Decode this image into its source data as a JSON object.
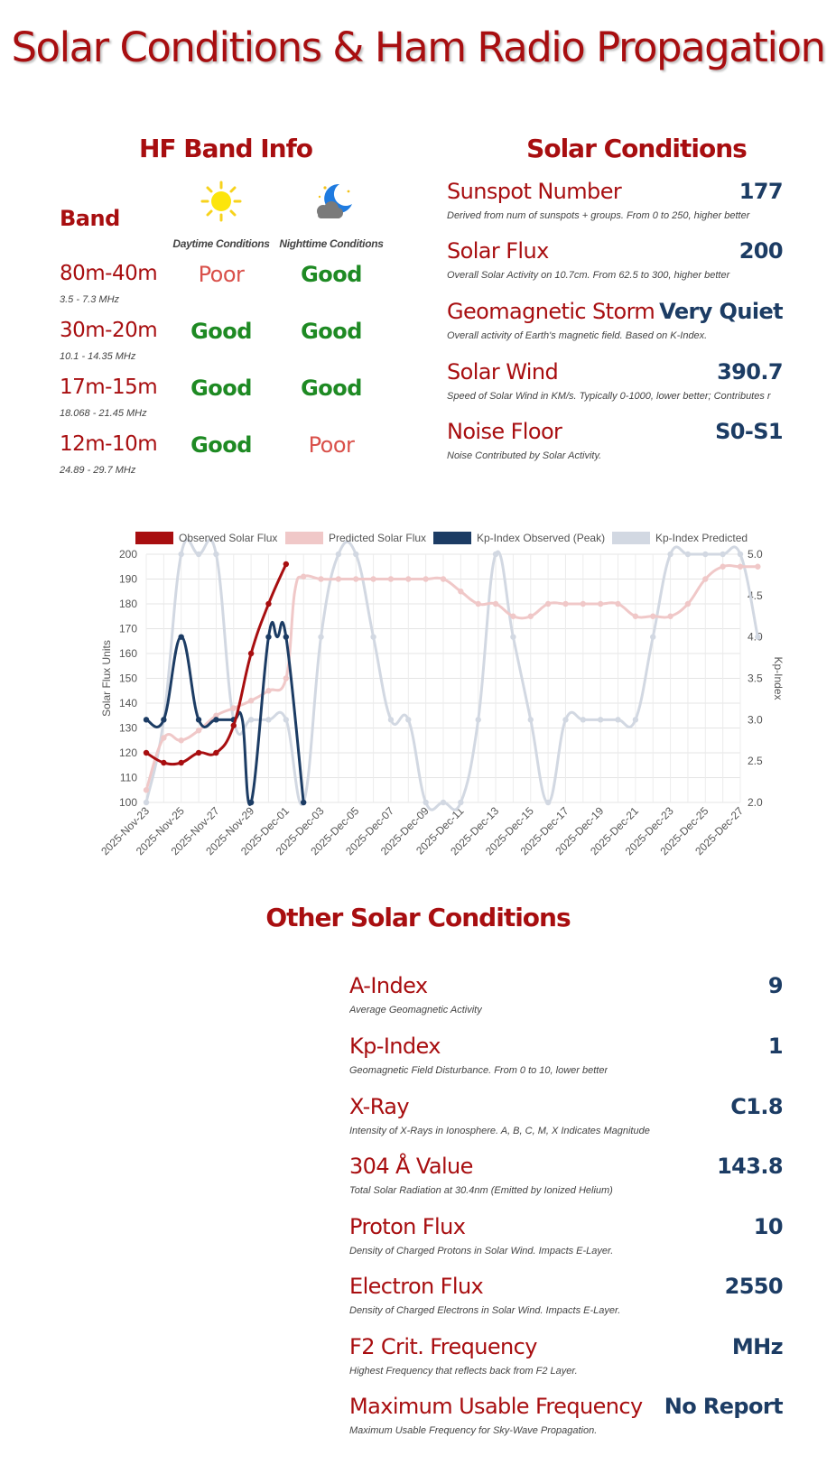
{
  "page_title": "Solar Conditions & Ham Radio Propagation",
  "hf": {
    "title": "HF Band Info",
    "band_header": "Band",
    "day_header": "Daytime Conditions",
    "night_header": "Nighttime Conditions",
    "day_icon": "sun-icon",
    "night_icon": "moon-cloud-icon",
    "rows": [
      {
        "band": "80m-40m",
        "freq": "3.5 - 7.3 MHz",
        "day": "Poor",
        "night": "Good"
      },
      {
        "band": "30m-20m",
        "freq": "10.1 - 14.35 MHz",
        "day": "Good",
        "night": "Good"
      },
      {
        "band": "17m-15m",
        "freq": "18.068 - 21.45 MHz",
        "day": "Good",
        "night": "Good"
      },
      {
        "band": "12m-10m",
        "freq": "24.89 - 29.7 MHz",
        "day": "Good",
        "night": "Poor"
      }
    ]
  },
  "solar": {
    "title": "Solar Conditions",
    "items": [
      {
        "label": "Sunspot Number",
        "value": "177",
        "desc": "Derived from num of sunspots + groups. From 0 to 250, higher better"
      },
      {
        "label": "Solar Flux",
        "value": "200",
        "desc": "Overall Solar Activity on 10.7cm. From 62.5 to 300, higher better"
      },
      {
        "label": "Geomagnetic Storm",
        "value": "Very Quiet",
        "desc": "Overall activity of Earth's magnetic field. Based on K-Index."
      },
      {
        "label": "Solar Wind",
        "value": "390.7",
        "desc": "Speed of Solar Wind in KM/s. Typically 0-1000, lower better; Contributes r"
      },
      {
        "label": "Noise Floor",
        "value": "S0-S1",
        "desc": "Noise Contributed by Solar Activity."
      }
    ]
  },
  "other": {
    "title": "Other Solar Conditions",
    "items": [
      {
        "label": "A-Index",
        "value": "9",
        "desc": "Average Geomagnetic Activity"
      },
      {
        "label": "Kp-Index",
        "value": "1",
        "desc": "Geomagnetic Field Disturbance. From 0 to 10, lower better"
      },
      {
        "label": "X-Ray",
        "value": "C1.8",
        "desc": "Intensity of X-Rays in Ionosphere. A, B, C, M, X Indicates Magnitude"
      },
      {
        "label": "304 Å Value",
        "value": "143.8",
        "desc": "Total Solar Radiation at 30.4nm (Emitted by Ionized Helium)"
      },
      {
        "label": "Proton Flux",
        "value": "10",
        "desc": "Density of Charged Protons in Solar Wind. Impacts E-Layer."
      },
      {
        "label": "Electron Flux",
        "value": "2550",
        "desc": "Density of Charged Electrons in Solar Wind. Impacts E-Layer."
      },
      {
        "label": "F2 Crit. Frequency",
        "value": "MHz",
        "desc": "Highest Frequency that reflects back from F2 Layer."
      },
      {
        "label": "Maximum Usable Frequency",
        "value": "No Report",
        "desc": "Maximum Usable Frequency for Sky-Wave Propagation."
      }
    ]
  },
  "colors": {
    "accent": "#a80e10",
    "value": "#1c3c64",
    "good": "#1e8a23",
    "poor": "#d9504a"
  },
  "chart_data": {
    "type": "line",
    "ylabel": "Solar Flux Units",
    "y2label": "Kp-Index",
    "ylim": [
      100,
      200
    ],
    "y2lim": [
      2.0,
      5.0
    ],
    "yticks": [
      "100",
      "110",
      "120",
      "130",
      "140",
      "150",
      "160",
      "170",
      "180",
      "190",
      "200"
    ],
    "y2ticks": [
      "2.0",
      "2.5",
      "3.0",
      "3.5",
      "4.0",
      "4.5",
      "5.0"
    ],
    "x": [
      "2025-Nov-23",
      "2025-Nov-24",
      "2025-Nov-25",
      "2025-Nov-26",
      "2025-Nov-27",
      "2025-Nov-28",
      "2025-Nov-29",
      "2025-Nov-30",
      "2025-Dec-01",
      "2025-Dec-02",
      "2025-Dec-03",
      "2025-Dec-04",
      "2025-Dec-05",
      "2025-Dec-06",
      "2025-Dec-07",
      "2025-Dec-08",
      "2025-Dec-09",
      "2025-Dec-10",
      "2025-Dec-11",
      "2025-Dec-12",
      "2025-Dec-13",
      "2025-Dec-14",
      "2025-Dec-15",
      "2025-Dec-16",
      "2025-Dec-17",
      "2025-Dec-18",
      "2025-Dec-19",
      "2025-Dec-20",
      "2025-Dec-21",
      "2025-Dec-22",
      "2025-Dec-23",
      "2025-Dec-24",
      "2025-Dec-25",
      "2025-Dec-26",
      "2025-Dec-27"
    ],
    "xtick_labels": [
      "2025-Nov-23",
      "2025-Nov-25",
      "2025-Nov-27",
      "2025-Nov-29",
      "2025-Dec-01",
      "2025-Dec-03",
      "2025-Dec-05",
      "2025-Dec-07",
      "2025-Dec-09",
      "2025-Dec-11",
      "2025-Dec-13",
      "2025-Dec-15",
      "2025-Dec-17",
      "2025-Dec-19",
      "2025-Dec-21",
      "2025-Dec-23",
      "2025-Dec-25",
      "2025-Dec-27"
    ],
    "legend_position": "top",
    "series": [
      {
        "name": "Observed Solar Flux",
        "axis": "left",
        "color": "#a80e10",
        "points": [
          [
            0,
            120
          ],
          [
            1,
            116
          ],
          [
            2,
            116
          ],
          [
            3,
            120
          ],
          [
            4,
            120
          ],
          [
            5,
            131
          ],
          [
            6,
            160
          ],
          [
            7,
            180
          ],
          [
            8,
            196
          ]
        ]
      },
      {
        "name": "Predicted Solar Flux",
        "axis": "left",
        "color": "#f0c8c8",
        "points": [
          [
            0,
            105
          ],
          [
            1,
            126
          ],
          [
            2,
            125
          ],
          [
            3,
            129
          ],
          [
            4,
            135
          ],
          [
            5,
            138
          ],
          [
            6,
            141
          ],
          [
            7,
            145
          ],
          [
            8,
            150
          ],
          [
            8.5,
            185
          ],
          [
            9,
            191
          ],
          [
            10,
            190
          ],
          [
            11,
            190
          ],
          [
            12,
            190
          ],
          [
            13,
            190
          ],
          [
            14,
            190
          ],
          [
            15,
            190
          ],
          [
            16,
            190
          ],
          [
            17,
            190
          ],
          [
            18,
            185
          ],
          [
            19,
            180
          ],
          [
            20,
            180
          ],
          [
            21,
            175
          ],
          [
            22,
            175
          ],
          [
            23,
            180
          ],
          [
            24,
            180
          ],
          [
            25,
            180
          ],
          [
            26,
            180
          ],
          [
            27,
            180
          ],
          [
            28,
            175
          ],
          [
            29,
            175
          ],
          [
            30,
            175
          ],
          [
            31,
            180
          ],
          [
            32,
            190
          ],
          [
            33,
            195
          ],
          [
            34,
            195
          ],
          [
            35,
            195
          ]
        ]
      },
      {
        "name": "Kp-Index Observed (Peak)",
        "axis": "right",
        "color": "#1c3c64",
        "points": [
          [
            0,
            3.0
          ],
          [
            1,
            3.0
          ],
          [
            2,
            4.0
          ],
          [
            3,
            3.0
          ],
          [
            4,
            3.0
          ],
          [
            5,
            3.0
          ],
          [
            5.5,
            3.0
          ],
          [
            6,
            2.0
          ],
          [
            7,
            4.0
          ],
          [
            7.5,
            4.0
          ],
          [
            8,
            4.0
          ],
          [
            9,
            2.0
          ]
        ]
      },
      {
        "name": "Kp-Index Predicted",
        "axis": "right",
        "color": "#d2d8e2",
        "points": [
          [
            0,
            2.0
          ],
          [
            1,
            3.0
          ],
          [
            2,
            5.0
          ],
          [
            3,
            5.0
          ],
          [
            4,
            5.0
          ],
          [
            5,
            3.0
          ],
          [
            6,
            3.0
          ],
          [
            7,
            3.0
          ],
          [
            8,
            3.0
          ],
          [
            9,
            2.0
          ],
          [
            10,
            4.0
          ],
          [
            11,
            5.0
          ],
          [
            12,
            5.0
          ],
          [
            13,
            4.0
          ],
          [
            14,
            3.0
          ],
          [
            15,
            3.0
          ],
          [
            16,
            2.0
          ],
          [
            17,
            2.0
          ],
          [
            18,
            2.0
          ],
          [
            19,
            3.0
          ],
          [
            20,
            5.0
          ],
          [
            21,
            4.0
          ],
          [
            22,
            3.0
          ],
          [
            23,
            2.0
          ],
          [
            24,
            3.0
          ],
          [
            25,
            3.0
          ],
          [
            26,
            3.0
          ],
          [
            27,
            3.0
          ],
          [
            28,
            3.0
          ],
          [
            29,
            4.0
          ],
          [
            30,
            5.0
          ],
          [
            31,
            5.0
          ],
          [
            32,
            5.0
          ],
          [
            33,
            5.0
          ],
          [
            34,
            5.0
          ],
          [
            35,
            4.0
          ]
        ]
      }
    ]
  }
}
